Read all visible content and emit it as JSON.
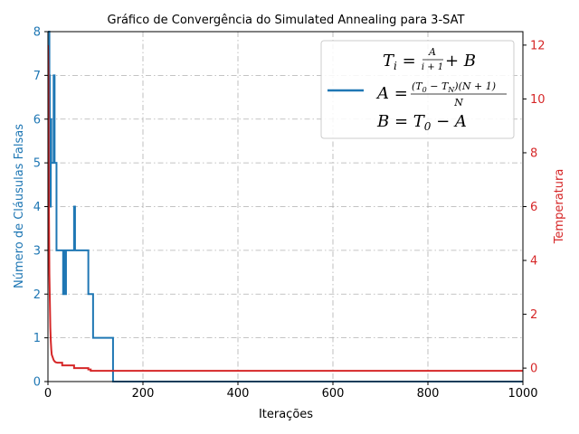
{
  "chart_data": {
    "type": "line",
    "title": "Gráfico de Convergência do Simulated Annealing para 3-SAT",
    "xlabel": "Iterações",
    "ylabel_left": "Número de Cláusulas Falsas",
    "ylabel_right": "Temperatura",
    "xlim": [
      0,
      1000
    ],
    "ylim_left": [
      0,
      8
    ],
    "ylim_right": [
      -0.5,
      12.5
    ],
    "x_ticks": [
      "0",
      "200",
      "400",
      "600",
      "800",
      "1000"
    ],
    "y_left_ticks": [
      "0",
      "1",
      "2",
      "3",
      "4",
      "5",
      "6",
      "7",
      "8"
    ],
    "y_right_ticks": [
      "0",
      "2",
      "4",
      "6",
      "8",
      "10",
      "12"
    ],
    "grid": true,
    "legend_placement": "top-right",
    "colors": {
      "left": "#1f77b4",
      "right": "#d62728"
    },
    "legend": {
      "line1": {
        "prefix": "T",
        "sub": "i",
        "eq": " = ",
        "num": "A",
        "den": "i + 1",
        "tail": " + B"
      },
      "line2": {
        "lhs": "A = ",
        "num": "(T",
        "num_sub": "0",
        "num_mid": " − T",
        "num_sub2": "N",
        "num_tail": ")(N + 1)",
        "den": "N"
      },
      "line3": {
        "text": "B = T",
        "sub": "0",
        "tail": " − A"
      }
    },
    "series": [
      {
        "axis": "left",
        "points": [
          [
            0,
            8
          ],
          [
            3,
            8
          ],
          [
            3,
            7
          ],
          [
            4,
            7
          ],
          [
            4,
            6
          ],
          [
            5,
            6
          ],
          [
            5,
            4
          ],
          [
            6,
            4
          ],
          [
            6,
            6
          ],
          [
            7,
            6
          ],
          [
            7,
            5
          ],
          [
            12,
            5
          ],
          [
            12,
            7
          ],
          [
            14,
            7
          ],
          [
            14,
            5
          ],
          [
            18,
            5
          ],
          [
            18,
            3
          ],
          [
            32,
            3
          ],
          [
            32,
            2
          ],
          [
            34,
            2
          ],
          [
            34,
            3
          ],
          [
            36,
            3
          ],
          [
            36,
            2
          ],
          [
            38,
            2
          ],
          [
            38,
            3
          ],
          [
            55,
            3
          ],
          [
            55,
            4
          ],
          [
            57,
            4
          ],
          [
            57,
            3
          ],
          [
            85,
            3
          ],
          [
            85,
            2
          ],
          [
            95,
            2
          ],
          [
            95,
            1
          ],
          [
            137,
            1
          ],
          [
            137,
            0
          ],
          [
            1000,
            0
          ]
        ]
      },
      {
        "axis": "right",
        "points": [
          [
            0,
            12.0
          ],
          [
            1,
            11.0
          ],
          [
            2,
            6.0
          ],
          [
            3,
            3.5
          ],
          [
            4,
            2.5
          ],
          [
            5,
            1.5
          ],
          [
            6,
            1.0
          ],
          [
            7,
            0.7
          ],
          [
            8,
            0.5
          ],
          [
            10,
            0.4
          ],
          [
            12,
            0.3
          ],
          [
            14,
            0.25
          ],
          [
            16,
            0.22
          ],
          [
            20,
            0.2
          ],
          [
            30,
            0.2
          ],
          [
            30,
            0.1
          ],
          [
            55,
            0.1
          ],
          [
            55,
            0
          ],
          [
            85,
            0
          ],
          [
            85,
            -0.05
          ],
          [
            90,
            -0.05
          ],
          [
            90,
            -0.1
          ],
          [
            1000,
            -0.1
          ]
        ]
      }
    ]
  }
}
